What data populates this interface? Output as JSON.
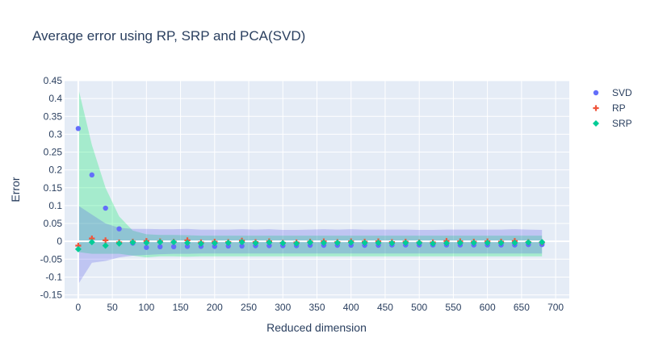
{
  "chart_data": {
    "type": "scatter",
    "title": "Average error using RP, SRP and PCA(SVD)",
    "xlabel": "Reduced dimension",
    "ylabel": "Error",
    "xlim": [
      -20,
      720
    ],
    "ylim": [
      -0.16,
      0.45
    ],
    "x_ticks": [
      0,
      50,
      100,
      150,
      200,
      250,
      300,
      350,
      400,
      450,
      500,
      550,
      600,
      650,
      700
    ],
    "y_ticks": [
      -0.15,
      -0.1,
      -0.05,
      0,
      0.05,
      0.1,
      0.15,
      0.2,
      0.25,
      0.3,
      0.35,
      0.4,
      0.45
    ],
    "grid": true,
    "legend_position": "top-right",
    "x": [
      0,
      20,
      40,
      60,
      80,
      100,
      120,
      140,
      160,
      180,
      200,
      220,
      240,
      260,
      280,
      300,
      320,
      340,
      360,
      380,
      400,
      420,
      440,
      460,
      480,
      500,
      520,
      540,
      560,
      580,
      600,
      620,
      640,
      660,
      680
    ],
    "series": [
      {
        "name": "SVD",
        "color": "#636efa",
        "marker": "circle",
        "values": [
          0.316,
          0.186,
          0.093,
          0.035,
          -0.005,
          -0.017,
          -0.015,
          -0.015,
          -0.014,
          -0.014,
          -0.014,
          -0.013,
          -0.013,
          -0.012,
          -0.012,
          -0.012,
          -0.012,
          -0.011,
          -0.011,
          -0.011,
          -0.011,
          -0.011,
          -0.011,
          -0.01,
          -0.01,
          -0.01,
          -0.01,
          -0.01,
          -0.01,
          -0.01,
          -0.01,
          -0.01,
          -0.01,
          -0.009,
          -0.009
        ]
      },
      {
        "name": "RP",
        "color": "#ef553b",
        "marker": "cross",
        "values": [
          -0.012,
          0.008,
          0.003,
          -0.003,
          -0.001,
          0.001,
          0.0,
          -0.001,
          0.003,
          -0.003,
          -0.001,
          -0.002,
          0.002,
          -0.002,
          0.0,
          -0.004,
          -0.003,
          -0.001,
          0.0,
          -0.002,
          0.0,
          -0.001,
          0.0,
          -0.002,
          -0.001,
          -0.003,
          -0.003,
          0.001,
          0.0,
          -0.001,
          0.0,
          -0.001,
          0.001,
          -0.002,
          -0.003
        ],
        "band_lower": [
          -0.12,
          -0.06,
          -0.055,
          -0.045,
          -0.04,
          -0.038,
          -0.036,
          -0.035,
          -0.035,
          -0.034,
          -0.034,
          -0.034,
          -0.034,
          -0.034,
          -0.034,
          -0.034,
          -0.034,
          -0.034,
          -0.034,
          -0.034,
          -0.034,
          -0.034,
          -0.034,
          -0.034,
          -0.034,
          -0.034,
          -0.034,
          -0.034,
          -0.034,
          -0.034,
          -0.034,
          -0.034,
          -0.034,
          -0.034,
          -0.034
        ],
        "band_upper": [
          0.1,
          0.075,
          0.05,
          0.038,
          0.035,
          0.035,
          0.034,
          0.034,
          0.035,
          0.033,
          0.033,
          0.033,
          0.034,
          0.033,
          0.034,
          0.032,
          0.032,
          0.033,
          0.034,
          0.033,
          0.034,
          0.033,
          0.033,
          0.033,
          0.033,
          0.032,
          0.032,
          0.033,
          0.033,
          0.033,
          0.033,
          0.033,
          0.034,
          0.033,
          0.032
        ]
      },
      {
        "name": "SRP",
        "color": "#00cc96",
        "marker": "diamond",
        "values": [
          -0.022,
          -0.002,
          -0.012,
          -0.006,
          -0.003,
          -0.004,
          -0.002,
          -0.002,
          -0.004,
          -0.006,
          -0.005,
          -0.004,
          -0.002,
          -0.005,
          -0.003,
          -0.005,
          -0.006,
          -0.003,
          -0.004,
          -0.004,
          -0.003,
          -0.004,
          -0.004,
          -0.005,
          -0.004,
          -0.004,
          -0.006,
          -0.005,
          -0.004,
          -0.004,
          -0.004,
          -0.004,
          -0.004,
          -0.003,
          -0.002
        ],
        "band_lower": [
          -0.03,
          -0.035,
          -0.035,
          -0.035,
          -0.04,
          -0.045,
          -0.042,
          -0.042,
          -0.043,
          -0.042,
          -0.042,
          -0.042,
          -0.042,
          -0.042,
          -0.042,
          -0.042,
          -0.042,
          -0.042,
          -0.042,
          -0.042,
          -0.042,
          -0.042,
          -0.042,
          -0.042,
          -0.042,
          -0.042,
          -0.042,
          -0.042,
          -0.042,
          -0.042,
          -0.042,
          -0.042,
          -0.042,
          -0.042,
          -0.042
        ],
        "band_upper": [
          0.43,
          0.27,
          0.15,
          0.07,
          0.03,
          0.02,
          0.018,
          0.018,
          0.017,
          0.016,
          0.016,
          0.016,
          0.016,
          0.016,
          0.016,
          0.016,
          0.016,
          0.016,
          0.016,
          0.016,
          0.016,
          0.016,
          0.016,
          0.016,
          0.016,
          0.016,
          0.016,
          0.016,
          0.016,
          0.016,
          0.016,
          0.016,
          0.016,
          0.016,
          0.016
        ]
      }
    ]
  }
}
